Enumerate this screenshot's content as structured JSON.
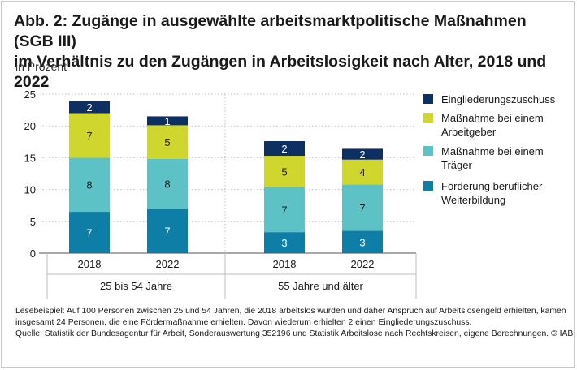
{
  "title_line1": "Abb. 2: Zugänge in ausgewählte arbeitsmarktpolitische Maßnahmen (SGB III)",
  "title_line2": "im Verhältnis zu den Zugängen in Arbeitslosigkeit nach Alter, 2018 und 2022",
  "subtitle": "in Prozent",
  "chart_data": {
    "type": "bar",
    "stacked": true,
    "ylim": [
      0,
      25
    ],
    "yticks": [
      0,
      5,
      10,
      15,
      20,
      25
    ],
    "groups": [
      "25 bis 54 Jahre",
      "55 Jahre und älter"
    ],
    "categories": [
      "2018",
      "2022",
      "2018",
      "2022"
    ],
    "group_index": [
      0,
      0,
      1,
      1
    ],
    "series": [
      {
        "name": "Förderung beruflicher Weiterbildung",
        "color": "#0f7ea6",
        "values": [
          6.5,
          7,
          3.3,
          3.5
        ],
        "labels": [
          "7",
          "7",
          "3",
          "3"
        ]
      },
      {
        "name": "Maßnahme bei einem Träger",
        "color": "#5cc2c6",
        "values": [
          8.5,
          7.8,
          7.1,
          7.3
        ],
        "labels": [
          "8",
          "8",
          "7",
          "7"
        ]
      },
      {
        "name": "Maßnahme bei einem Arbeitgeber",
        "color": "#cfd62e",
        "values": [
          7,
          5.3,
          4.9,
          3.9
        ],
        "labels": [
          "7",
          "5",
          "5",
          "4"
        ]
      },
      {
        "name": "Eingliederungszuschuss",
        "color": "#0e2f62",
        "values": [
          1.9,
          1.4,
          2.3,
          1.7
        ],
        "labels": [
          "2",
          "1",
          "2",
          "2"
        ]
      }
    ],
    "legend_position": "right"
  },
  "legend": [
    {
      "label": "Eingliederungszuschuss",
      "color": "#0e2f62"
    },
    {
      "label": "Maßnahme bei einem Arbeitgeber",
      "color": "#cfd62e"
    },
    {
      "label": "Maßnahme bei einem Träger",
      "color": "#5cc2c6"
    },
    {
      "label": "Förderung beruflicher Weiterbildung",
      "color": "#0f7ea6"
    }
  ],
  "notes": {
    "example": "Lesebeispiel: Auf 100 Personen zwischen 25 und 54 Jahren, die 2018 arbeitslos wurden und daher Anspruch auf Arbeitslosengeld erhielten, kamen insgesamt 24 Personen, die eine Fördermaßnahme erhielten. Davon wiederum erhielten 2 einen Eingliederungszuschuss.",
    "source": "Quelle: Statistik der Bundesagentur für Arbeit, Sonderauswertung 352196 und Statistik Arbeitslose nach Rechtskreisen, eigene Berechnungen. © IAB"
  }
}
